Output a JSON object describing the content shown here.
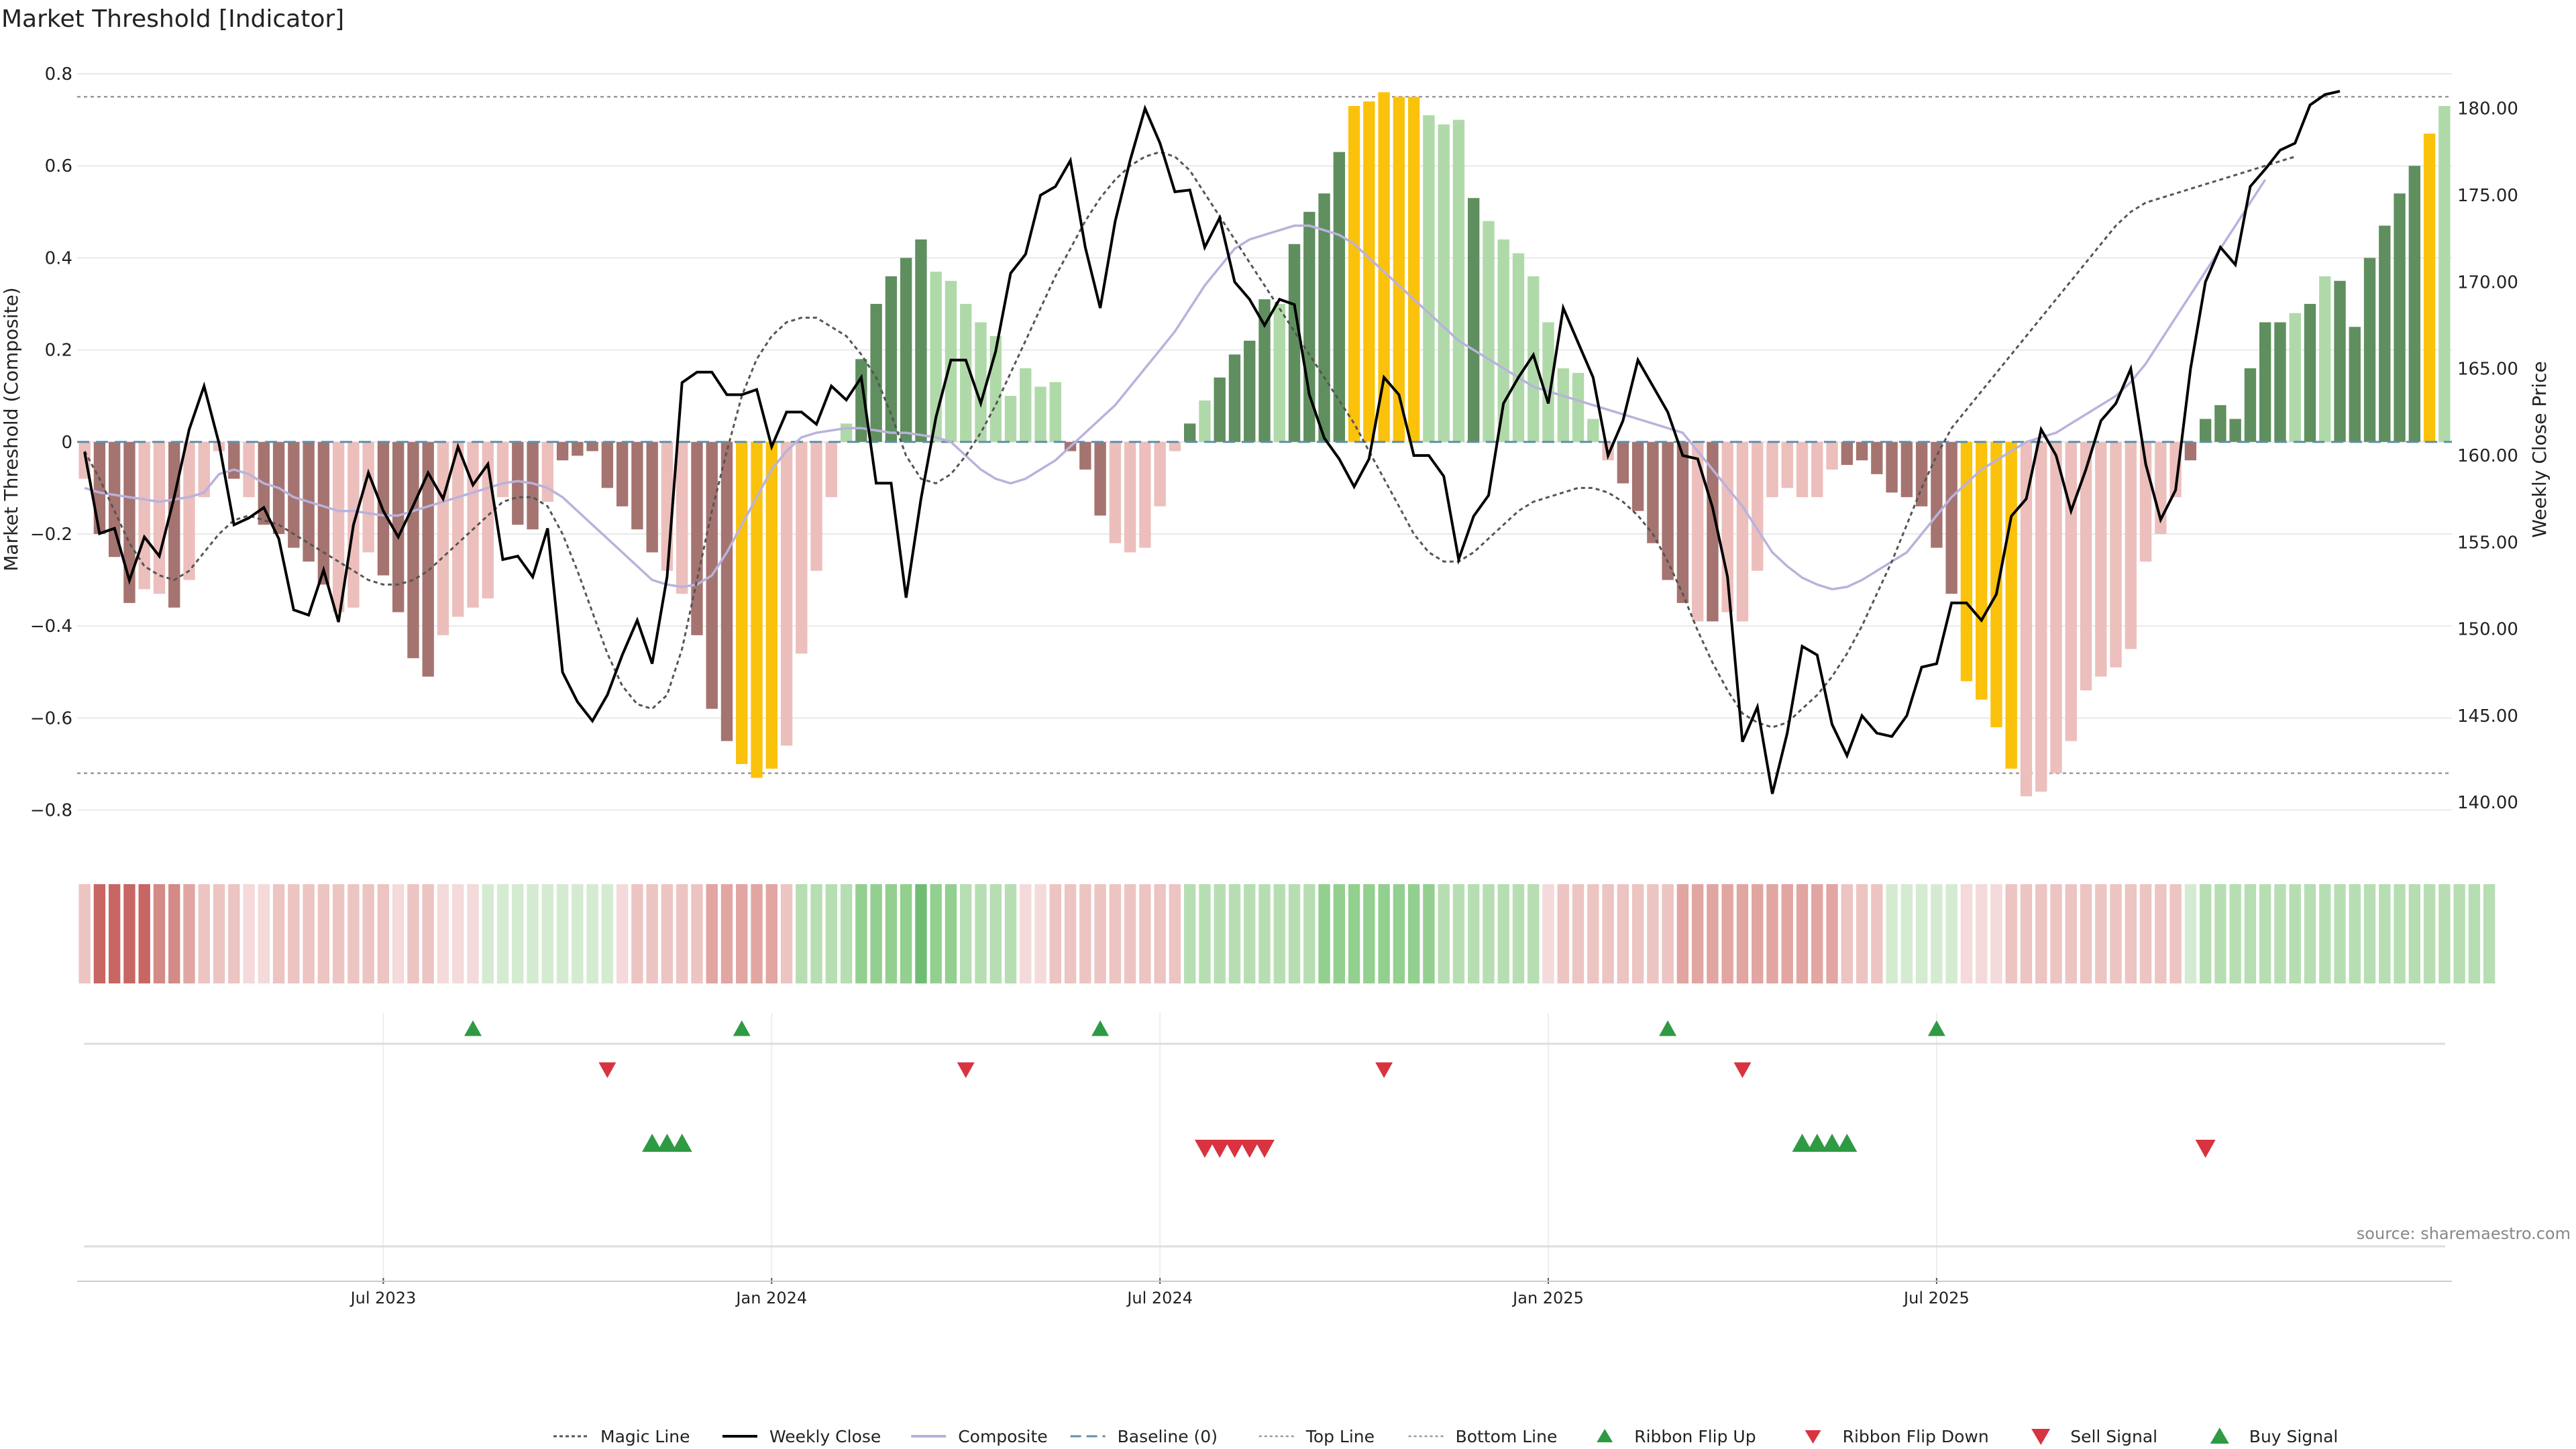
{
  "chart_data": {
    "type": "bar",
    "title": "Market Threshold [Indicator]",
    "ylabel_left": "Market Threshold (Composite)",
    "ylabel_right": "Weekly Close Price",
    "source": "source: sharemaestro.com",
    "ylim_left": [
      -0.84,
      0.8
    ],
    "ylim_right": [
      138.5,
      182.0
    ],
    "yticks_left": [
      0.8,
      0.6,
      0.4,
      0.2,
      0,
      -0.2,
      -0.4,
      -0.6,
      -0.8
    ],
    "ytick_labels_left": [
      "0.8",
      "0.6",
      "0.4",
      "0.2",
      "0",
      "−0.2",
      "−0.4",
      "−0.6",
      "−0.8"
    ],
    "yticks_right": [
      180,
      175,
      170,
      165,
      160,
      155,
      150,
      145,
      140
    ],
    "ytick_labels_right": [
      "180.00",
      "175.00",
      "170.00",
      "165.00",
      "160.00",
      "155.00",
      "150.00",
      "145.00",
      "140.00"
    ],
    "x_ticks": [
      {
        "week": 20,
        "label": "Jul 2023"
      },
      {
        "week": 46,
        "label": "Jan 2024"
      },
      {
        "week": 72,
        "label": "Jul 2024"
      },
      {
        "week": 98,
        "label": "Jan 2025"
      },
      {
        "week": 124,
        "label": "Jul 2025"
      }
    ],
    "top_line": 0.75,
    "bottom_line": -0.72,
    "legend_position": "bottom",
    "legend": [
      "Magic Line",
      "Weekly Close",
      "Composite",
      "Baseline (0)",
      "Top Line",
      "Bottom Line",
      "Ribbon Flip Up",
      "Ribbon Flip Down",
      "Sell Signal",
      "Buy Signal"
    ],
    "colors": {
      "bar_strong_down": "#a57470",
      "bar_weak_down": "#ecbfbc",
      "bar_strong_up": "#5f8f5e",
      "bar_weak_up": "#b0d9a9",
      "bar_extreme": "#fbc20c",
      "weekly_close": "#000000",
      "composite": "#b9b2dc",
      "magic_line": "#555555",
      "baseline": "#5f8fa8",
      "thresholds": "#999999",
      "signal_up": "#2f9a44",
      "signal_down": "#d8333f"
    },
    "composite_bars": [
      -0.08,
      -0.2,
      -0.25,
      -0.35,
      -0.32,
      -0.33,
      -0.36,
      -0.3,
      -0.12,
      -0.02,
      -0.08,
      -0.12,
      -0.18,
      -0.2,
      -0.23,
      -0.26,
      -0.31,
      -0.37,
      -0.36,
      -0.24,
      -0.29,
      -0.37,
      -0.47,
      -0.51,
      -0.42,
      -0.38,
      -0.36,
      -0.34,
      -0.12,
      -0.18,
      -0.19,
      -0.13,
      -0.04,
      -0.03,
      -0.02,
      -0.1,
      -0.14,
      -0.19,
      -0.24,
      -0.28,
      -0.33,
      -0.42,
      -0.58,
      -0.65,
      -0.7,
      -0.73,
      -0.71,
      -0.66,
      -0.46,
      -0.28,
      -0.12,
      0.04,
      0.18,
      0.3,
      0.36,
      0.4,
      0.44,
      0.37,
      0.35,
      0.3,
      0.26,
      0.23,
      0.1,
      0.16,
      0.12,
      0.13,
      -0.02,
      -0.06,
      -0.16,
      -0.22,
      -0.24,
      -0.23,
      -0.14,
      -0.02,
      0.04,
      0.09,
      0.14,
      0.19,
      0.22,
      0.31,
      0.3,
      0.43,
      0.5,
      0.54,
      0.63,
      0.73,
      0.74,
      0.76,
      0.75,
      0.75,
      0.71,
      0.69,
      0.7,
      0.53,
      0.48,
      0.44,
      0.41,
      0.36,
      0.26,
      0.16,
      0.15,
      0.05,
      -0.04,
      -0.09,
      -0.15,
      -0.22,
      -0.3,
      -0.35,
      -0.39,
      -0.39,
      -0.37,
      -0.39,
      -0.28,
      -0.12,
      -0.1,
      -0.12,
      -0.12,
      -0.06,
      -0.05,
      -0.04,
      -0.07,
      -0.11,
      -0.12,
      -0.14,
      -0.23,
      -0.33,
      -0.52,
      -0.56,
      -0.62,
      -0.71,
      -0.77,
      -0.76,
      -0.72,
      -0.65,
      -0.54,
      -0.51,
      -0.49,
      -0.45,
      -0.26,
      -0.2,
      -0.12,
      -0.04,
      0.05,
      0.08,
      0.05,
      0.16,
      0.26,
      0.26,
      0.28,
      0.3,
      0.36,
      0.35,
      0.25,
      0.4,
      0.47,
      0.54,
      0.6,
      0.67,
      0.73
    ],
    "bar_kinds": [
      "W",
      "S",
      "S",
      "S",
      "W",
      "W",
      "S",
      "W",
      "W",
      "W",
      "S",
      "W",
      "S",
      "S",
      "S",
      "S",
      "S",
      "W",
      "W",
      "W",
      "S",
      "S",
      "S",
      "S",
      "W",
      "W",
      "W",
      "W",
      "W",
      "S",
      "S",
      "W",
      "S",
      "S",
      "S",
      "S",
      "S",
      "S",
      "S",
      "W",
      "W",
      "S",
      "S",
      "S",
      "Y",
      "Y",
      "Y",
      "W",
      "W",
      "W",
      "W",
      "W",
      "S",
      "S",
      "S",
      "S",
      "S",
      "W",
      "W",
      "W",
      "W",
      "W",
      "W",
      "W",
      "W",
      "W",
      "S",
      "S",
      "S",
      "W",
      "W",
      "W",
      "W",
      "W",
      "S",
      "W",
      "S",
      "S",
      "S",
      "S",
      "W",
      "S",
      "S",
      "S",
      "S",
      "Y",
      "Y",
      "Y",
      "Y",
      "Y",
      "W",
      "W",
      "W",
      "S",
      "W",
      "W",
      "W",
      "W",
      "W",
      "W",
      "W",
      "W",
      "W",
      "S",
      "S",
      "S",
      "S",
      "S",
      "W",
      "S",
      "W",
      "W",
      "W",
      "W",
      "W",
      "W",
      "W",
      "W",
      "S",
      "S",
      "S",
      "S",
      "S",
      "S",
      "S",
      "S",
      "Y",
      "Y",
      "Y",
      "Y",
      "W",
      "W",
      "W",
      "W",
      "W",
      "W",
      "W",
      "W",
      "W",
      "W",
      "W",
      "S",
      "S",
      "S",
      "S",
      "S",
      "S",
      "S",
      "W",
      "S",
      "W",
      "S",
      "S",
      "S",
      "S",
      "S",
      "S",
      "Y"
    ],
    "weekly_close": [
      160.2,
      155.5,
      155.8,
      152.8,
      155.3,
      154.2,
      157.6,
      161.5,
      164.0,
      160.7,
      156.0,
      156.4,
      157.0,
      155.2,
      151.1,
      150.8,
      153.4,
      150.4,
      156.0,
      159.0,
      156.8,
      155.3,
      157.1,
      159.0,
      157.5,
      160.5,
      158.3,
      159.5,
      154.0,
      154.2,
      153.0,
      155.8,
      147.5,
      145.8,
      144.7,
      146.2,
      148.5,
      150.5,
      148.0,
      153.0,
      164.2,
      164.8,
      164.8,
      163.5,
      163.5,
      163.8,
      160.5,
      162.5,
      162.5,
      161.8,
      164.0,
      163.2,
      164.5,
      158.4,
      158.4,
      151.8,
      157.5,
      162.2,
      165.5,
      165.5,
      163.0,
      166.0,
      170.5,
      171.6,
      175.0,
      175.5,
      177.0,
      172.0,
      168.5,
      173.5,
      177.0,
      180.0,
      178.0,
      175.2,
      175.3,
      172.0,
      173.7,
      170.0,
      169.0,
      167.5,
      169.0,
      168.7,
      163.5,
      161.0,
      159.8,
      158.2,
      159.8,
      164.5,
      163.5,
      160.0,
      160.0,
      158.8,
      154.0,
      156.5,
      157.7,
      163.0,
      164.5,
      165.8,
      163.0,
      168.5,
      166.5,
      164.5,
      160.0,
      162.0,
      165.5,
      164.0,
      162.5,
      160.0,
      159.8,
      157.0,
      153.0,
      143.5,
      145.5,
      140.5,
      144.0,
      149.0,
      148.5,
      144.5,
      142.7,
      145.0,
      144.0,
      143.8,
      145.0,
      147.8,
      148.0,
      151.5,
      151.5,
      150.5,
      152.0,
      156.5,
      157.5,
      161.5,
      160.0,
      156.8,
      159.2,
      162.0,
      163.0,
      165.0,
      159.5,
      156.3,
      158.0,
      165.0,
      170.0,
      172.0,
      171.0,
      175.5,
      176.5,
      177.6,
      178.0,
      180.2,
      180.8,
      181.0
    ],
    "composite_line": [
      -0.1,
      -0.11,
      -0.115,
      -0.12,
      -0.125,
      -0.13,
      -0.125,
      -0.12,
      -0.11,
      -0.07,
      -0.06,
      -0.07,
      -0.09,
      -0.1,
      -0.12,
      -0.13,
      -0.14,
      -0.15,
      -0.15,
      -0.155,
      -0.16,
      -0.16,
      -0.15,
      -0.14,
      -0.13,
      -0.12,
      -0.11,
      -0.1,
      -0.09,
      -0.085,
      -0.09,
      -0.1,
      -0.12,
      -0.15,
      -0.18,
      -0.21,
      -0.24,
      -0.27,
      -0.3,
      -0.31,
      -0.315,
      -0.31,
      -0.29,
      -0.24,
      -0.18,
      -0.12,
      -0.06,
      -0.02,
      0.01,
      0.02,
      0.025,
      0.03,
      0.03,
      0.025,
      0.02,
      0.02,
      0.015,
      0.01,
      0.0,
      -0.03,
      -0.06,
      -0.08,
      -0.09,
      -0.08,
      -0.06,
      -0.04,
      -0.01,
      0.02,
      0.05,
      0.08,
      0.12,
      0.16,
      0.2,
      0.24,
      0.29,
      0.34,
      0.38,
      0.42,
      0.44,
      0.45,
      0.46,
      0.47,
      0.47,
      0.46,
      0.45,
      0.43,
      0.4,
      0.37,
      0.34,
      0.31,
      0.28,
      0.25,
      0.22,
      0.2,
      0.18,
      0.16,
      0.14,
      0.12,
      0.11,
      0.1,
      0.09,
      0.08,
      0.07,
      0.06,
      0.05,
      0.04,
      0.03,
      0.02,
      -0.02,
      -0.06,
      -0.1,
      -0.14,
      -0.19,
      -0.24,
      -0.27,
      -0.295,
      -0.31,
      -0.32,
      -0.315,
      -0.3,
      -0.28,
      -0.26,
      -0.24,
      -0.2,
      -0.16,
      -0.12,
      -0.09,
      -0.06,
      -0.04,
      -0.02,
      0.0,
      0.01,
      0.02,
      0.04,
      0.06,
      0.08,
      0.1,
      0.13,
      0.17,
      0.22,
      0.27,
      0.32,
      0.37,
      0.42,
      0.47,
      0.52,
      0.57
    ],
    "magic_line": [
      -0.02,
      -0.08,
      -0.15,
      -0.22,
      -0.27,
      -0.29,
      -0.3,
      -0.28,
      -0.24,
      -0.2,
      -0.17,
      -0.16,
      -0.17,
      -0.18,
      -0.2,
      -0.22,
      -0.24,
      -0.26,
      -0.28,
      -0.3,
      -0.31,
      -0.31,
      -0.3,
      -0.28,
      -0.25,
      -0.22,
      -0.19,
      -0.16,
      -0.13,
      -0.12,
      -0.12,
      -0.14,
      -0.2,
      -0.28,
      -0.37,
      -0.46,
      -0.53,
      -0.57,
      -0.58,
      -0.55,
      -0.45,
      -0.3,
      -0.15,
      -0.02,
      0.1,
      0.18,
      0.23,
      0.26,
      0.27,
      0.27,
      0.25,
      0.23,
      0.19,
      0.14,
      0.06,
      -0.03,
      -0.08,
      -0.09,
      -0.07,
      -0.03,
      0.02,
      0.08,
      0.15,
      0.22,
      0.29,
      0.36,
      0.42,
      0.48,
      0.53,
      0.57,
      0.6,
      0.62,
      0.63,
      0.62,
      0.59,
      0.54,
      0.49,
      0.44,
      0.39,
      0.34,
      0.29,
      0.24,
      0.19,
      0.14,
      0.09,
      0.04,
      -0.02,
      -0.08,
      -0.14,
      -0.2,
      -0.24,
      -0.26,
      -0.26,
      -0.24,
      -0.21,
      -0.18,
      -0.15,
      -0.13,
      -0.12,
      -0.11,
      -0.1,
      -0.1,
      -0.11,
      -0.13,
      -0.16,
      -0.2,
      -0.26,
      -0.33,
      -0.41,
      -0.48,
      -0.54,
      -0.59,
      -0.61,
      -0.62,
      -0.61,
      -0.58,
      -0.55,
      -0.51,
      -0.46,
      -0.4,
      -0.33,
      -0.26,
      -0.18,
      -0.1,
      -0.03,
      0.03,
      0.07,
      0.11,
      0.15,
      0.19,
      0.23,
      0.27,
      0.31,
      0.35,
      0.39,
      0.43,
      0.47,
      0.5,
      0.52,
      0.53,
      0.54,
      0.55,
      0.56,
      0.57,
      0.58,
      0.59,
      0.6,
      0.61,
      0.62
    ],
    "ribbon_shades": [
      2,
      5,
      5,
      5,
      5,
      4,
      4,
      3,
      2,
      2,
      2,
      1,
      1,
      2,
      2,
      2,
      2,
      2,
      2,
      2,
      2,
      1,
      2,
      2,
      1,
      1,
      1,
      -1,
      -1,
      -1,
      -1,
      -1,
      -1,
      -1,
      -1,
      -1,
      1,
      2,
      2,
      2,
      2,
      2,
      3,
      3,
      3,
      3,
      3,
      2,
      -2,
      -2,
      -2,
      -2,
      -3,
      -3,
      -3,
      -3,
      -4,
      -3,
      -3,
      -2,
      -2,
      -2,
      -2,
      1,
      1,
      2,
      2,
      2,
      2,
      2,
      2,
      2,
      2,
      2,
      -2,
      -2,
      -2,
      -2,
      -2,
      -2,
      -2,
      -2,
      -2,
      -3,
      -3,
      -3,
      -3,
      -3,
      -3,
      -3,
      -3,
      -2,
      -2,
      -2,
      -2,
      -2,
      -2,
      -2,
      1,
      2,
      2,
      2,
      2,
      2,
      2,
      2,
      2,
      3,
      3,
      3,
      3,
      3,
      3,
      3,
      3,
      3,
      3,
      3,
      2,
      2,
      2,
      -1,
      -1,
      -1,
      -1,
      -1,
      1,
      1,
      1,
      2,
      2,
      2,
      2,
      2,
      2,
      2,
      2,
      2,
      2,
      2,
      2,
      -1,
      -2,
      -2,
      -2,
      -2,
      -2,
      -2,
      -2,
      -2,
      -2,
      -2,
      -2,
      -2,
      -2,
      -2,
      -2,
      -2,
      -2,
      -2,
      -2,
      -2
    ],
    "ribbon_flip_up": [
      26,
      44,
      68,
      106,
      124
    ],
    "ribbon_flip_down": [
      35,
      59,
      87,
      111
    ],
    "buy_signals": [
      38,
      39,
      40,
      115,
      116,
      117,
      118
    ],
    "sell_signals": [
      75,
      76,
      77,
      78,
      79,
      142
    ]
  }
}
